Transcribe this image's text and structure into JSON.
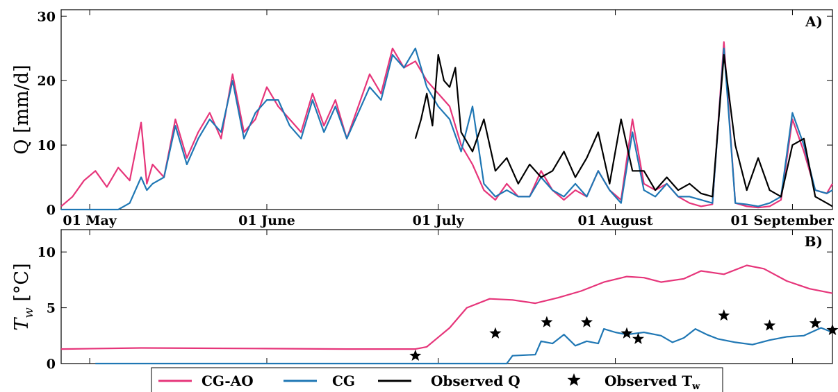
{
  "chart_data": [
    {
      "panel": "A)",
      "type": "line",
      "ylabel": "Q [mm/d]",
      "xlim": [
        "2018-04-26",
        "2018-09-08"
      ],
      "ylim": [
        0,
        31
      ],
      "yticks": [
        0,
        10,
        20,
        30
      ],
      "xticks": [
        {
          "date": "2018-05-01",
          "label": "01 May"
        },
        {
          "date": "2018-06-01",
          "label": "01 June"
        },
        {
          "date": "2018-07-01",
          "label": "01 July"
        },
        {
          "date": "2018-08-01",
          "label": "01 August"
        },
        {
          "date": "2018-09-01",
          "label": "01 September"
        }
      ],
      "series": [
        {
          "name": "CG-AO",
          "color": "#e6357a",
          "x": [
            "2018-04-26",
            "2018-04-28",
            "2018-04-30",
            "2018-05-02",
            "2018-05-04",
            "2018-05-06",
            "2018-05-08",
            "2018-05-10",
            "2018-05-11",
            "2018-05-12",
            "2018-05-14",
            "2018-05-16",
            "2018-05-18",
            "2018-05-20",
            "2018-05-22",
            "2018-05-24",
            "2018-05-26",
            "2018-05-28",
            "2018-05-30",
            "2018-06-01",
            "2018-06-03",
            "2018-06-05",
            "2018-06-07",
            "2018-06-09",
            "2018-06-11",
            "2018-06-13",
            "2018-06-15",
            "2018-06-17",
            "2018-06-19",
            "2018-06-21",
            "2018-06-23",
            "2018-06-25",
            "2018-06-27",
            "2018-06-29",
            "2018-07-01",
            "2018-07-03",
            "2018-07-05",
            "2018-07-07",
            "2018-07-09",
            "2018-07-11",
            "2018-07-13",
            "2018-07-15",
            "2018-07-17",
            "2018-07-19",
            "2018-07-21",
            "2018-07-23",
            "2018-07-25",
            "2018-07-27",
            "2018-07-29",
            "2018-07-31",
            "2018-08-02",
            "2018-08-04",
            "2018-08-06",
            "2018-08-08",
            "2018-08-10",
            "2018-08-12",
            "2018-08-14",
            "2018-08-16",
            "2018-08-18",
            "2018-08-20",
            "2018-08-22",
            "2018-08-24",
            "2018-08-26",
            "2018-08-28",
            "2018-08-30",
            "2018-09-01",
            "2018-09-03",
            "2018-09-05",
            "2018-09-07",
            "2018-09-08"
          ],
          "y": [
            0.5,
            2,
            4.5,
            6,
            3.5,
            6.5,
            4.5,
            13.5,
            4,
            7,
            5,
            14,
            8,
            12,
            15,
            11,
            21,
            12,
            14,
            19,
            16,
            14,
            12,
            18,
            13,
            17,
            11,
            16,
            21,
            18,
            25,
            22,
            23,
            20,
            18,
            16,
            10,
            7,
            3,
            1.5,
            4,
            2,
            2,
            6,
            3,
            1.5,
            3,
            2,
            6,
            3,
            1.5,
            14,
            4,
            3,
            4,
            2,
            1,
            0.5,
            0.8,
            26,
            1,
            0.5,
            0.3,
            0.5,
            1.5,
            14,
            9,
            3,
            2.5,
            4
          ]
        },
        {
          "name": "CG",
          "color": "#1f77b4",
          "x": [
            "2018-04-26",
            "2018-05-06",
            "2018-05-08",
            "2018-05-10",
            "2018-05-11",
            "2018-05-12",
            "2018-05-14",
            "2018-05-16",
            "2018-05-18",
            "2018-05-20",
            "2018-05-22",
            "2018-05-24",
            "2018-05-26",
            "2018-05-28",
            "2018-05-30",
            "2018-06-01",
            "2018-06-03",
            "2018-06-05",
            "2018-06-07",
            "2018-06-09",
            "2018-06-11",
            "2018-06-13",
            "2018-06-15",
            "2018-06-17",
            "2018-06-19",
            "2018-06-21",
            "2018-06-23",
            "2018-06-25",
            "2018-06-27",
            "2018-06-29",
            "2018-07-01",
            "2018-07-03",
            "2018-07-05",
            "2018-07-07",
            "2018-07-09",
            "2018-07-11",
            "2018-07-13",
            "2018-07-15",
            "2018-07-17",
            "2018-07-19",
            "2018-07-21",
            "2018-07-23",
            "2018-07-25",
            "2018-07-27",
            "2018-07-29",
            "2018-07-31",
            "2018-08-02",
            "2018-08-04",
            "2018-08-06",
            "2018-08-08",
            "2018-08-10",
            "2018-08-12",
            "2018-08-14",
            "2018-08-16",
            "2018-08-18",
            "2018-08-20",
            "2018-08-22",
            "2018-08-24",
            "2018-08-26",
            "2018-08-28",
            "2018-08-30",
            "2018-09-01",
            "2018-09-03",
            "2018-09-05",
            "2018-09-07",
            "2018-09-08"
          ],
          "y": [
            0,
            0,
            1,
            5,
            3,
            4,
            5,
            13,
            7,
            11,
            14,
            12,
            20,
            11,
            15,
            17,
            17,
            13,
            11,
            17,
            12,
            16,
            11,
            15,
            19,
            17,
            24,
            22,
            25,
            19,
            16,
            14,
            9,
            16,
            4,
            2,
            3,
            2,
            2,
            5,
            3,
            2,
            4,
            2,
            6,
            3,
            1,
            12,
            3,
            2,
            4,
            2,
            2,
            1.5,
            1,
            25,
            1,
            0.8,
            0.5,
            1,
            2,
            15,
            10,
            3,
            2.5,
            3
          ]
        },
        {
          "name": "Observed Q",
          "color": "#000000",
          "x": [
            "2018-06-27",
            "2018-06-28",
            "2018-06-29",
            "2018-06-30",
            "2018-07-01",
            "2018-07-02",
            "2018-07-03",
            "2018-07-04",
            "2018-07-05",
            "2018-07-07",
            "2018-07-09",
            "2018-07-11",
            "2018-07-13",
            "2018-07-15",
            "2018-07-17",
            "2018-07-19",
            "2018-07-21",
            "2018-07-23",
            "2018-07-25",
            "2018-07-27",
            "2018-07-29",
            "2018-07-31",
            "2018-08-02",
            "2018-08-04",
            "2018-08-06",
            "2018-08-08",
            "2018-08-10",
            "2018-08-12",
            "2018-08-14",
            "2018-08-16",
            "2018-08-18",
            "2018-08-20",
            "2018-08-22",
            "2018-08-24",
            "2018-08-26",
            "2018-08-28",
            "2018-08-30",
            "2018-09-01",
            "2018-09-03",
            "2018-09-05",
            "2018-09-07",
            "2018-09-08"
          ],
          "y": [
            11,
            14,
            18,
            13,
            24,
            20,
            19,
            22,
            12,
            9,
            14,
            6,
            8,
            4,
            7,
            5,
            6,
            9,
            5,
            8,
            12,
            4,
            14,
            6,
            6,
            3,
            5,
            3,
            4,
            2.5,
            2,
            24,
            10,
            3,
            8,
            3,
            2,
            10,
            11,
            2,
            1,
            0.5
          ]
        }
      ]
    },
    {
      "panel": "B)",
      "type": "line",
      "ylabel": "T_w [°C]",
      "xlim": [
        "2018-04-26",
        "2018-09-08"
      ],
      "ylim": [
        0,
        12
      ],
      "yticks": [
        0,
        5,
        10
      ],
      "series": [
        {
          "name": "CG-AO",
          "color": "#e6357a",
          "x": [
            "2018-04-26",
            "2018-05-10",
            "2018-05-30",
            "2018-06-15",
            "2018-06-27",
            "2018-06-29",
            "2018-07-03",
            "2018-07-06",
            "2018-07-10",
            "2018-07-14",
            "2018-07-18",
            "2018-07-22",
            "2018-07-26",
            "2018-07-30",
            "2018-08-03",
            "2018-08-06",
            "2018-08-09",
            "2018-08-13",
            "2018-08-16",
            "2018-08-20",
            "2018-08-24",
            "2018-08-27",
            "2018-08-31",
            "2018-09-04",
            "2018-09-08"
          ],
          "y": [
            1.3,
            1.4,
            1.35,
            1.3,
            1.3,
            1.5,
            3.2,
            5.0,
            5.8,
            5.7,
            5.4,
            5.9,
            6.5,
            7.3,
            7.8,
            7.7,
            7.3,
            7.6,
            8.3,
            8.0,
            8.8,
            8.5,
            7.4,
            6.7,
            6.3
          ]
        },
        {
          "name": "CG",
          "color": "#1f77b4",
          "x": [
            "2018-05-02",
            "2018-06-27",
            "2018-07-13",
            "2018-07-14",
            "2018-07-18",
            "2018-07-19",
            "2018-07-21",
            "2018-07-23",
            "2018-07-25",
            "2018-07-27",
            "2018-07-29",
            "2018-07-30",
            "2018-08-01",
            "2018-08-03",
            "2018-08-06",
            "2018-08-09",
            "2018-08-11",
            "2018-08-13",
            "2018-08-15",
            "2018-08-17",
            "2018-08-19",
            "2018-08-22",
            "2018-08-25",
            "2018-08-28",
            "2018-08-31",
            "2018-09-03",
            "2018-09-06",
            "2018-09-08"
          ],
          "y": [
            0,
            0,
            0,
            0.7,
            0.8,
            2.0,
            1.8,
            2.6,
            1.6,
            2.0,
            1.8,
            3.1,
            2.8,
            2.6,
            2.8,
            2.5,
            1.9,
            2.3,
            3.1,
            2.6,
            2.2,
            1.9,
            1.7,
            2.1,
            2.4,
            2.5,
            3.2,
            2.8
          ]
        }
      ],
      "observed": {
        "name": "Observed T_w",
        "x": [
          "2018-06-27",
          "2018-07-11",
          "2018-07-20",
          "2018-07-27",
          "2018-08-03",
          "2018-08-05",
          "2018-08-20",
          "2018-08-28",
          "2018-09-05",
          "2018-09-08"
        ],
        "y": [
          0.7,
          2.7,
          3.7,
          3.7,
          2.7,
          2.2,
          4.3,
          3.4,
          3.6,
          3.0
        ]
      }
    }
  ],
  "legend": {
    "position": "bottom-center",
    "entries": [
      {
        "label": "CG-AO",
        "kind": "line",
        "color": "#e6357a"
      },
      {
        "label": "CG",
        "kind": "line",
        "color": "#1f77b4"
      },
      {
        "label": "Observed Q",
        "kind": "line",
        "color": "#000000"
      },
      {
        "label": "Observed T",
        "subscript": "w",
        "kind": "star",
        "color": "#000000"
      }
    ]
  }
}
